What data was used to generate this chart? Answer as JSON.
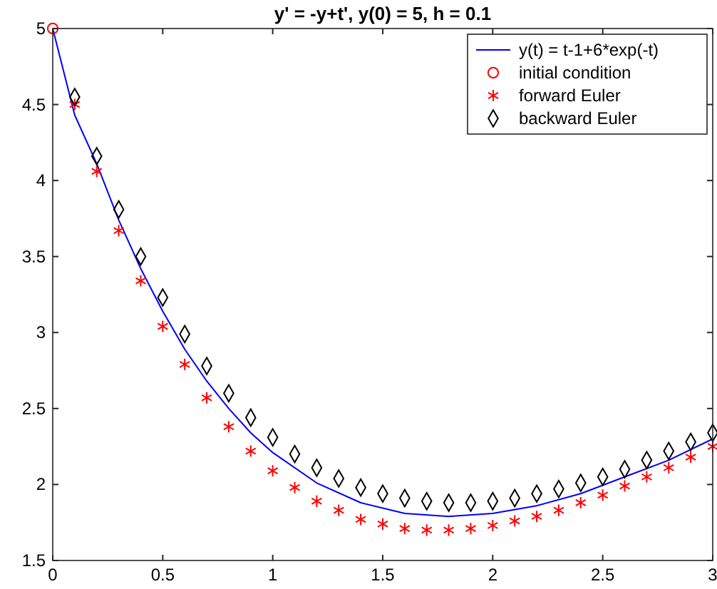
{
  "chart_data": {
    "type": "line",
    "title": "y' = -y+t', y(0) = 5, h = 0.1",
    "xlim": [
      0,
      3
    ],
    "ylim": [
      1.5,
      5
    ],
    "xticks": [
      0,
      0.5,
      1,
      1.5,
      2,
      2.5,
      3
    ],
    "yticks": [
      1.5,
      2,
      2.5,
      3,
      3.5,
      4,
      4.5,
      5
    ],
    "grid": false,
    "legend": "top right",
    "series": [
      {
        "name": "y(t) = t-1+6*exp(-t)",
        "type": "line",
        "color": "#0000ff",
        "marker": "none",
        "line_style": "solid",
        "x": [
          0,
          0.1,
          0.2,
          0.3,
          0.4,
          0.5,
          0.6,
          0.7,
          0.8,
          0.9,
          1,
          1.2,
          1.4,
          1.6,
          1.8,
          2,
          2.2,
          2.4,
          2.6,
          2.8,
          3
        ],
        "values": [
          5,
          4.43,
          4.11,
          3.74,
          3.42,
          3.14,
          2.89,
          2.68,
          2.5,
          2.34,
          2.21,
          2.01,
          1.88,
          1.81,
          1.79,
          1.81,
          1.86,
          1.94,
          2.05,
          2.16,
          2.3
        ]
      },
      {
        "name": "initial condition",
        "type": "scatter",
        "color": "#ff0000",
        "marker": "circle",
        "x": [
          0
        ],
        "values": [
          5
        ]
      },
      {
        "name": "forward Euler",
        "type": "scatter",
        "color": "#ff0000",
        "marker": "cross",
        "x": [
          0.1,
          0.2,
          0.3,
          0.4,
          0.5,
          0.6,
          0.7,
          0.8,
          0.9,
          1,
          1.1,
          1.2,
          1.3,
          1.4,
          1.5,
          1.6,
          1.7,
          1.8,
          1.9,
          2,
          2.1,
          2.2,
          2.3,
          2.4,
          2.5,
          2.6,
          2.7,
          2.8,
          2.9,
          3
        ],
        "values": [
          4.5,
          4.06,
          3.67,
          3.34,
          3.04,
          2.79,
          2.57,
          2.38,
          2.22,
          2.09,
          1.98,
          1.89,
          1.83,
          1.77,
          1.74,
          1.71,
          1.7,
          1.7,
          1.71,
          1.73,
          1.76,
          1.79,
          1.83,
          1.88,
          1.93,
          1.99,
          2.05,
          2.11,
          2.18,
          2.25
        ]
      },
      {
        "name": "backward Euler",
        "type": "scatter",
        "color": "#000000",
        "marker": "diamond",
        "x": [
          0.1,
          0.2,
          0.3,
          0.4,
          0.5,
          0.6,
          0.7,
          0.8,
          0.9,
          1,
          1.1,
          1.2,
          1.3,
          1.4,
          1.5,
          1.6,
          1.7,
          1.8,
          1.9,
          2,
          2.1,
          2.2,
          2.3,
          2.4,
          2.5,
          2.6,
          2.7,
          2.8,
          2.9,
          3
        ],
        "values": [
          4.55,
          4.16,
          3.81,
          3.5,
          3.23,
          2.99,
          2.78,
          2.6,
          2.44,
          2.31,
          2.2,
          2.11,
          2.04,
          1.98,
          1.94,
          1.91,
          1.89,
          1.88,
          1.88,
          1.89,
          1.91,
          1.94,
          1.97,
          2.01,
          2.05,
          2.1,
          2.16,
          2.22,
          2.28,
          2.34
        ]
      }
    ]
  }
}
